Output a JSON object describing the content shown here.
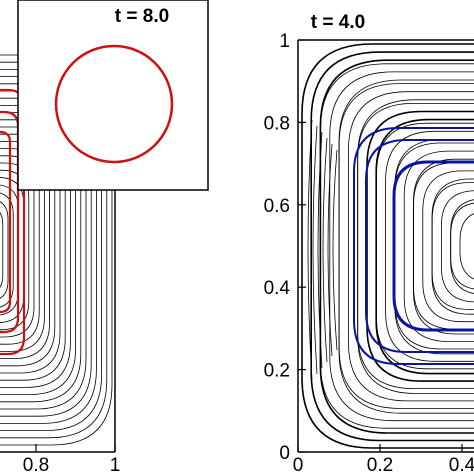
{
  "figure": {
    "left_panel": {
      "xtick_labels": [
        "0.8",
        "1"
      ],
      "contour_color": "#000000",
      "highlight_color": "#cc1111"
    },
    "inset": {
      "time_label": "t = 8.0",
      "circle_color": "#cc1111"
    },
    "right_panel": {
      "time_label": "t = 4.0",
      "ytick_labels": [
        "1",
        "0.8",
        "0.6",
        "0.4",
        "0.2",
        "0"
      ],
      "xtick_labels": [
        "0",
        "0.2",
        "0.4"
      ],
      "contour_color": "#000000",
      "highlight_color": "#0a14a0"
    }
  }
}
